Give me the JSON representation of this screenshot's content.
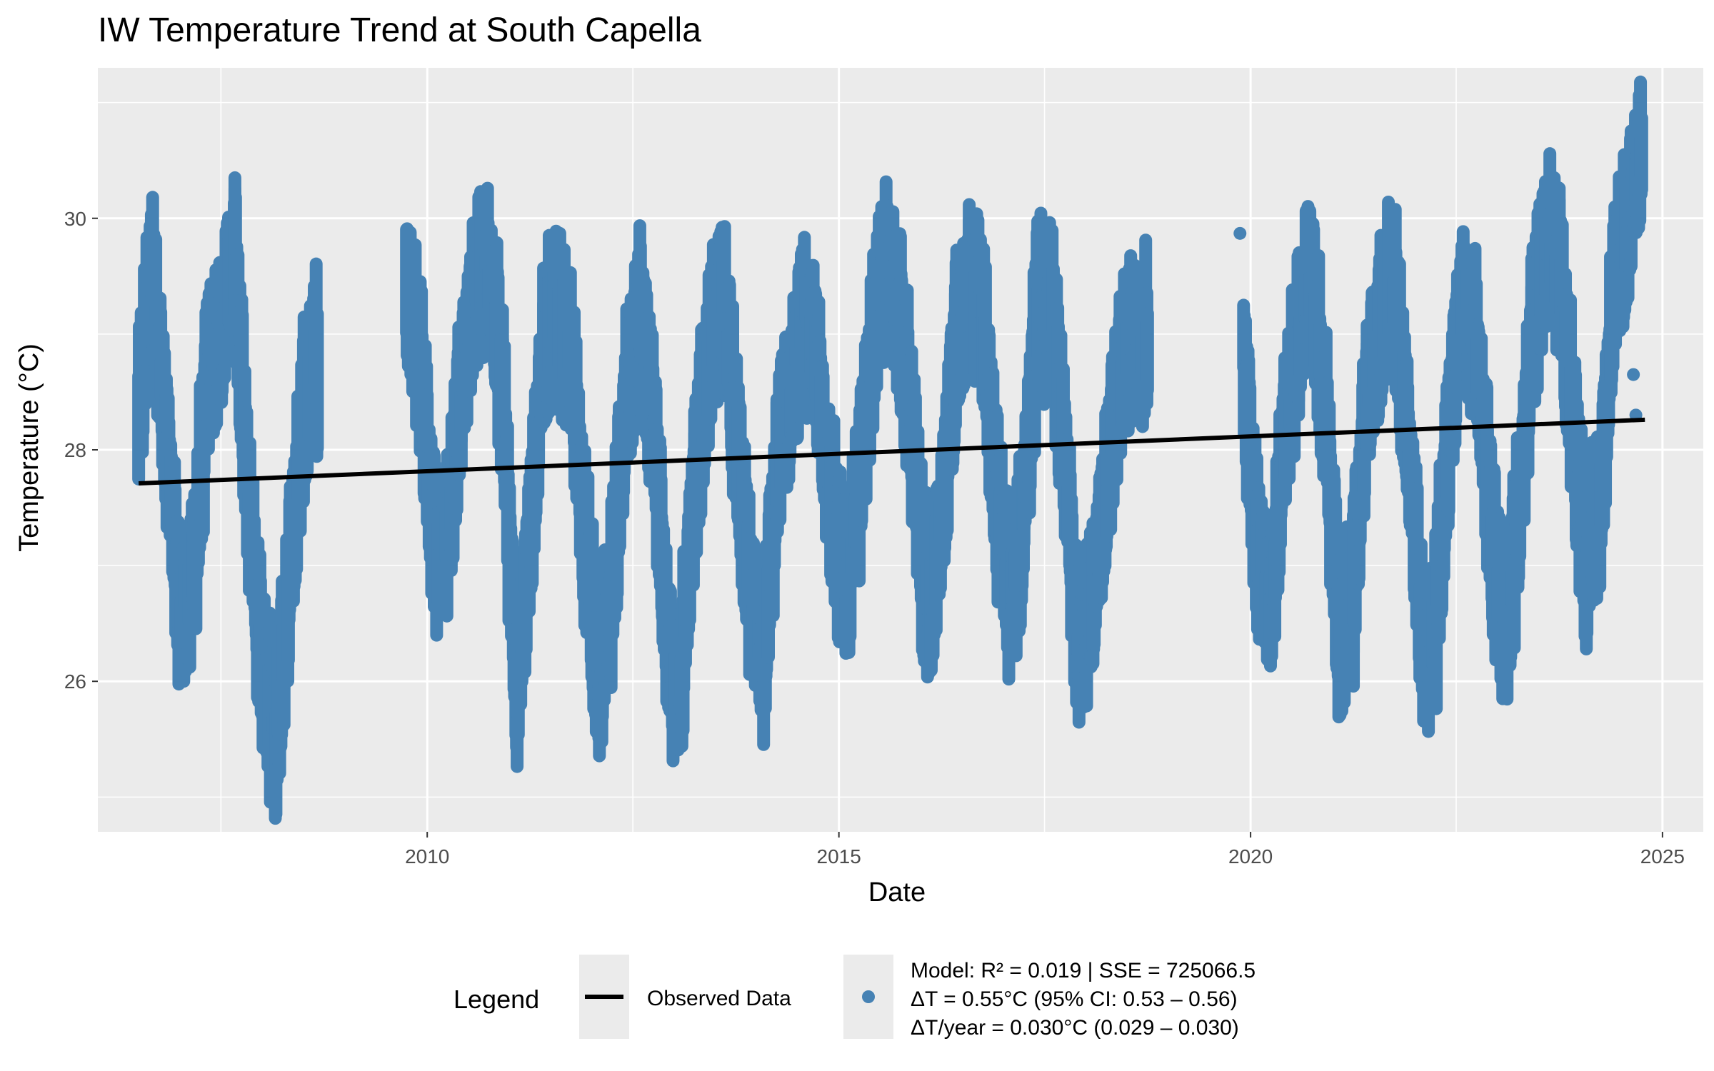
{
  "chart_data": {
    "type": "scatter",
    "title": "IW Temperature Trend at South Capella",
    "xlabel": "Date",
    "ylabel": "Temperature (°C)",
    "xlim": [
      "2006-01-01",
      "2025-07-01"
    ],
    "ylim": [
      24.7,
      31.3
    ],
    "x_ticks": [
      "2010",
      "2015",
      "2020",
      "2025"
    ],
    "y_ticks": [
      26,
      28,
      30
    ],
    "grid": true,
    "legend_position": "bottom",
    "series": [
      {
        "name": "Observed Data",
        "kind": "points",
        "color": "#4682B4",
        "segments": [
          {
            "x": [
              "2006-07-01",
              "2006-09-01",
              "2006-11-01",
              "2007-01-01",
              "2007-03-01",
              "2007-05-01",
              "2007-07-01",
              "2007-09-01",
              "2007-11-01",
              "2008-01-01",
              "2008-03-01",
              "2008-05-01",
              "2008-07-01",
              "2008-09-01"
            ],
            "y": [
              28.3,
              29.6,
              28.0,
              26.5,
              26.9,
              28.6,
              29.0,
              29.6,
              27.6,
              26.1,
              25.5,
              27.0,
              28.3,
              28.8
            ]
          },
          {
            "x": [
              "2009-10-01",
              "2009-12-01",
              "2010-02-01",
              "2010-04-01",
              "2010-06-01",
              "2010-08-01",
              "2010-10-01",
              "2010-12-01",
              "2011-02-01",
              "2011-04-01",
              "2011-06-01",
              "2011-08-01",
              "2011-10-01",
              "2011-12-01",
              "2012-02-01",
              "2012-04-01",
              "2012-06-01",
              "2012-08-01",
              "2012-10-01",
              "2012-12-01",
              "2013-02-01",
              "2013-04-01",
              "2013-06-01",
              "2013-08-01",
              "2013-10-01",
              "2013-12-01",
              "2014-02-01",
              "2014-04-01",
              "2014-06-01",
              "2014-08-01",
              "2014-10-01",
              "2014-12-01",
              "2015-02-01",
              "2015-04-01",
              "2015-06-01",
              "2015-08-01",
              "2015-10-01",
              "2015-12-01",
              "2016-02-01",
              "2016-04-01",
              "2016-06-01",
              "2016-08-01",
              "2016-10-01",
              "2016-12-01",
              "2017-02-01",
              "2017-04-01",
              "2017-06-01",
              "2017-08-01",
              "2017-10-01",
              "2017-12-01",
              "2018-02-01",
              "2018-04-01",
              "2018-06-01",
              "2018-08-01",
              "2018-10-01"
            ],
            "y": [
              29.3,
              28.8,
              27.2,
              27.3,
              28.6,
              29.4,
              29.6,
              28.5,
              25.9,
              27.2,
              28.9,
              29.2,
              28.8,
              27.3,
              26.0,
              26.8,
              28.5,
              29.2,
              28.2,
              26.3,
              26.0,
              27.8,
              28.7,
              29.4,
              28.2,
              26.8,
              26.1,
              27.8,
              28.5,
              29.2,
              28.6,
              27.6,
              26.7,
              27.6,
              28.9,
              29.6,
              29.2,
              27.9,
              26.6,
              27.3,
              28.9,
              29.5,
              29.1,
              27.5,
              26.6,
              27.6,
              29.2,
              29.3,
              27.8,
              26.4,
              26.6,
              27.8,
              28.6,
              29.0,
              29.0
            ]
          },
          {
            "x": [
              "2019-12-01",
              "2020-02-01",
              "2020-04-01",
              "2020-06-01",
              "2020-08-01",
              "2020-10-01",
              "2020-12-01",
              "2021-02-01",
              "2021-04-01",
              "2021-06-01",
              "2021-08-01",
              "2021-10-01",
              "2021-12-01",
              "2022-02-01",
              "2022-04-01",
              "2022-06-01",
              "2022-08-01",
              "2022-10-01",
              "2022-12-01",
              "2023-02-01",
              "2023-04-01",
              "2023-06-01",
              "2023-08-01",
              "2023-10-01",
              "2023-12-01",
              "2024-02-01",
              "2024-04-01",
              "2024-06-01",
              "2024-08-01",
              "2024-10-01"
            ],
            "y": [
              28.8,
              27.1,
              26.7,
              28.1,
              29.0,
              29.5,
              28.2,
              26.3,
              26.8,
              28.4,
              29.2,
              29.4,
              28.0,
              26.3,
              26.5,
              28.2,
              29.4,
              28.9,
              27.4,
              26.3,
              27.4,
              28.9,
              29.9,
              29.6,
              28.2,
              27.0,
              27.6,
              29.5,
              30.0,
              30.6
            ]
          }
        ],
        "outliers": {
          "x": [
            "2019-11-15",
            "2024-08-25",
            "2024-09-05"
          ],
          "y": [
            29.87,
            28.65,
            28.3
          ]
        }
      },
      {
        "name": "Model: R² = 0.019 | SSE = 725066.5\nΔT = 0.55°C (95% CI: 0.53 – 0.56)\nΔT/year = 0.030°C (0.029 – 0.030)",
        "kind": "line",
        "color": "#000000",
        "x": [
          "2006-07-01",
          "2024-10-15"
        ],
        "y": [
          27.71,
          28.26
        ]
      }
    ]
  },
  "legend": {
    "title": "Legend",
    "line_label": "Observed Data",
    "model_lines": [
      "Model: R² = 0.019 | SSE = 725066.5",
      "ΔT = 0.55°C (95% CI: 0.53 – 0.56)",
      "ΔT/year = 0.030°C (0.029 – 0.030)"
    ]
  },
  "colors": {
    "panel_background": "#EBEBEB",
    "grid": "#FFFFFF",
    "points": "#4682B4",
    "trend": "#000000"
  }
}
